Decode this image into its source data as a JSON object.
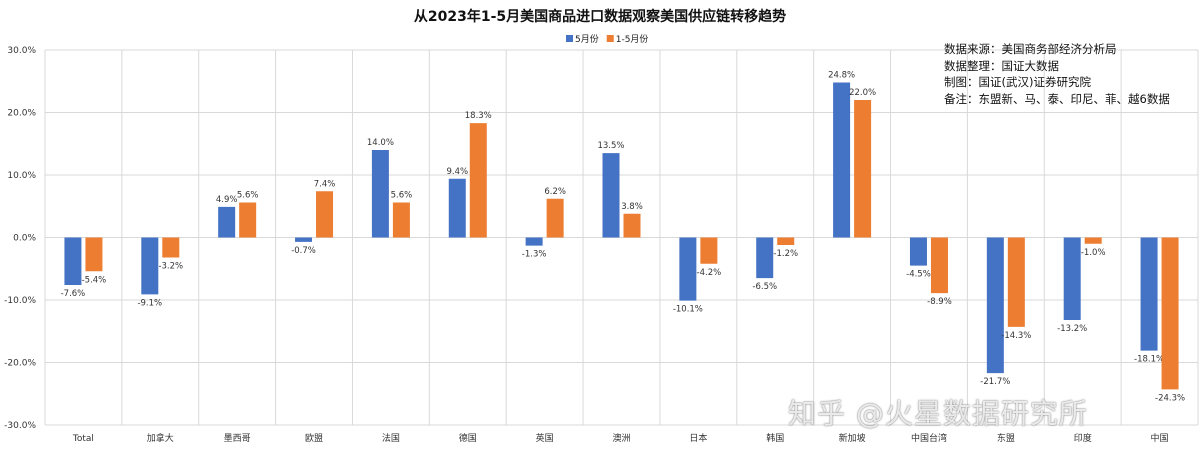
{
  "chart_data": {
    "type": "bar",
    "title": "从2023年1-5月美国商品进口数据观察美国供应链转移趋势",
    "categories": [
      "Total",
      "加拿大",
      "墨西哥",
      "欧盟",
      "法国",
      "德国",
      "英国",
      "澳洲",
      "日本",
      "韩国",
      "新加坡",
      "中国台湾",
      "东盟",
      "印度",
      "中国"
    ],
    "series": [
      {
        "name": "5月份",
        "color": "#4472C4",
        "values": [
          -7.6,
          -9.1,
          4.9,
          -0.7,
          14.0,
          9.4,
          -1.3,
          13.5,
          -10.1,
          -6.5,
          24.8,
          -4.5,
          -21.7,
          -13.2,
          -18.1
        ],
        "labels": [
          "-7.6%",
          "-9.1%",
          "4.9%",
          "-0.7%",
          "14.0%",
          "9.4%",
          "-1.3%",
          "13.5%",
          "-10.1%",
          "-6.5%",
          "24.8%",
          "-4.5%",
          "-21.7%",
          "-13.2%",
          "-18.1%"
        ]
      },
      {
        "name": "1-5月份",
        "color": "#ED7D31",
        "values": [
          -5.4,
          -3.2,
          5.6,
          7.4,
          5.6,
          18.3,
          6.2,
          3.8,
          -4.2,
          -1.2,
          22.0,
          -8.9,
          -14.3,
          -1.0,
          -24.3
        ],
        "labels": [
          "-5.4%",
          "-3.2%",
          "5.6%",
          "7.4%",
          "5.6%",
          "18.3%",
          "6.2%",
          "3.8%",
          "-4.2%",
          "-1.2%",
          "22.0%",
          "-8.9%",
          "-14.3%",
          "-1.0%",
          "-24.3%"
        ]
      }
    ],
    "ylim": [
      -30,
      30
    ],
    "yticks": [
      "30.0%",
      "20.0%",
      "10.0%",
      "0.0%",
      "-10.0%",
      "-20.0%",
      "-30.0%"
    ],
    "ytick_values": [
      30,
      20,
      10,
      0,
      -10,
      -20,
      -30
    ],
    "grid": true,
    "legend": "top-center"
  },
  "notes": [
    "数据来源：美国商务部经济分析局",
    "数据整理：国证大数据",
    "制图：国证(武汉)证券研究院",
    "备注：东盟新、马、泰、印尼、菲、越6数据"
  ],
  "watermark": "知乎 @火星数据研究所"
}
